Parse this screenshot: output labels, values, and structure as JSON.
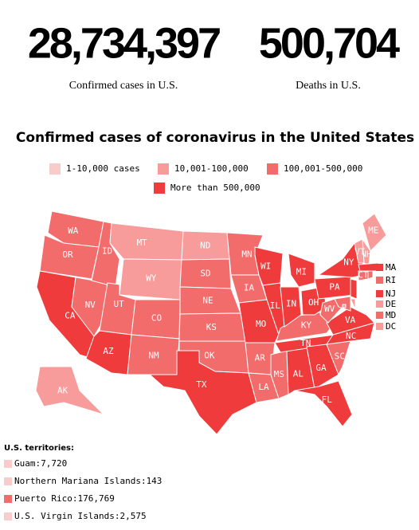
{
  "stats": [
    {
      "value": "28,734,397",
      "label": "Confirmed cases in U.S."
    },
    {
      "value": "500,704",
      "label": "Deaths in U.S."
    }
  ],
  "map": {
    "title": "Confirmed cases of coronavirus in the United States",
    "legend": [
      {
        "label": "1-10,000 cases",
        "color": "#f9cccc"
      },
      {
        "label": "10,001-100,000",
        "color": "#f79b9b"
      },
      {
        "label": "100,001-500,000",
        "color": "#f26c6c"
      },
      {
        "label": "More than 500,000",
        "color": "#ef3b3b"
      }
    ],
    "states": [
      {
        "id": "WA",
        "level": 2
      },
      {
        "id": "OR",
        "level": 2
      },
      {
        "id": "CA",
        "level": 3
      },
      {
        "id": "NV",
        "level": 2
      },
      {
        "id": "ID",
        "level": 2
      },
      {
        "id": "MT",
        "level": 1
      },
      {
        "id": "WY",
        "level": 1
      },
      {
        "id": "UT",
        "level": 2
      },
      {
        "id": "AZ",
        "level": 3
      },
      {
        "id": "CO",
        "level": 2
      },
      {
        "id": "NM",
        "level": 2
      },
      {
        "id": "ND",
        "level": 1
      },
      {
        "id": "SD",
        "level": 2
      },
      {
        "id": "NE",
        "level": 2
      },
      {
        "id": "KS",
        "level": 2
      },
      {
        "id": "OK",
        "level": 2
      },
      {
        "id": "TX",
        "level": 3
      },
      {
        "id": "MN",
        "level": 2
      },
      {
        "id": "IA",
        "level": 2
      },
      {
        "id": "MO",
        "level": 3
      },
      {
        "id": "AR",
        "level": 2
      },
      {
        "id": "LA",
        "level": 2
      },
      {
        "id": "WI",
        "level": 3
      },
      {
        "id": "IL",
        "level": 3
      },
      {
        "id": "MS",
        "level": 2
      },
      {
        "id": "AL",
        "level": 3
      },
      {
        "id": "TN",
        "level": 3
      },
      {
        "id": "KY",
        "level": 2
      },
      {
        "id": "IN",
        "level": 3
      },
      {
        "id": "MI",
        "level": 3
      },
      {
        "id": "OH",
        "level": 3
      },
      {
        "id": "GA",
        "level": 3
      },
      {
        "id": "FL",
        "level": 3
      },
      {
        "id": "SC",
        "level": 2
      },
      {
        "id": "NC",
        "level": 3
      },
      {
        "id": "VA",
        "level": 3
      },
      {
        "id": "WV",
        "level": 2
      },
      {
        "id": "PA",
        "level": 3
      },
      {
        "id": "NY",
        "level": 3
      },
      {
        "id": "ME",
        "level": 1
      },
      {
        "id": "NH",
        "level": 1
      },
      {
        "id": "VT",
        "level": 1
      },
      {
        "id": "MA",
        "level": 3
      },
      {
        "id": "CT",
        "level": 2
      },
      {
        "id": "RI",
        "level": 2
      },
      {
        "id": "NJ",
        "level": 3
      },
      {
        "id": "DE",
        "level": 1
      },
      {
        "id": "MD",
        "level": 2
      },
      {
        "id": "DC",
        "level": 1
      },
      {
        "id": "AK",
        "level": 1
      }
    ],
    "territories_title": "U.S. territories:",
    "territories": [
      {
        "label": "Guam:7,720",
        "level": 0
      },
      {
        "label": "Northern Mariana Islands:143",
        "level": 0
      },
      {
        "label": "Puerto Rico:176,769",
        "level": 2
      },
      {
        "label": "U.S. Virgin Islands:2,575",
        "level": 0
      }
    ]
  }
}
